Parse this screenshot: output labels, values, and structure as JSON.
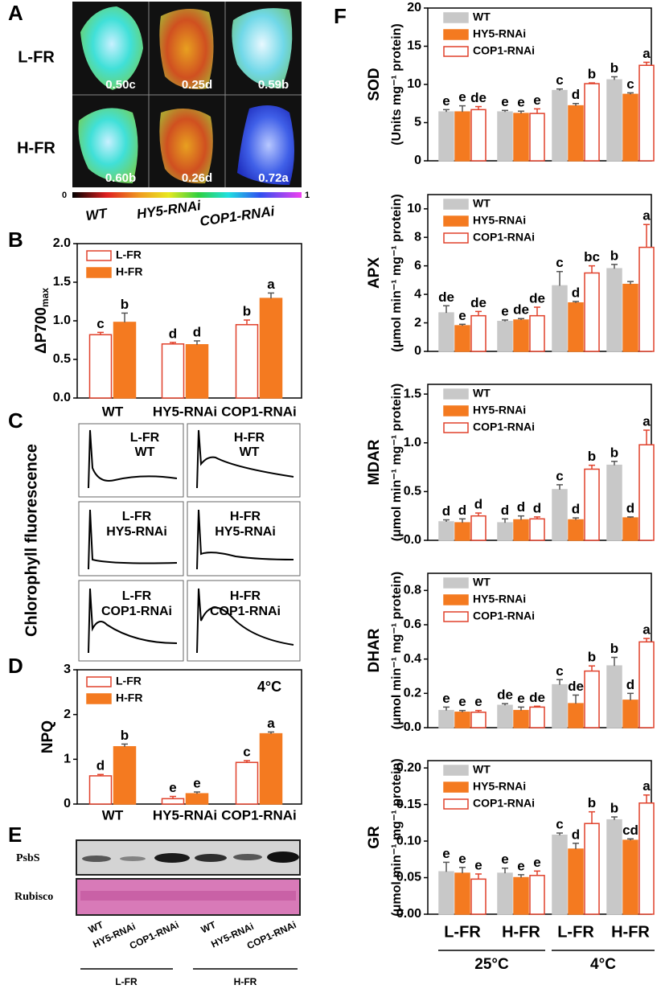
{
  "panel_letters": [
    "A",
    "B",
    "C",
    "D",
    "E",
    "F"
  ],
  "panel_a": {
    "rows": [
      "L-FR",
      "H-FR"
    ],
    "columns": [
      "WT",
      "HY5-RNAi",
      "COP1-RNAi"
    ],
    "labels": [
      [
        "0.50c",
        "0.25d",
        "0.59b"
      ],
      [
        "0.60b",
        "0.26d",
        "0.72a"
      ]
    ],
    "colorbar": [
      0,
      1
    ]
  },
  "panel_c": {
    "ylabel": "Chlorophyll fluorescence",
    "cells": [
      [
        "L-FR",
        "WT"
      ],
      [
        "H-FR",
        "WT"
      ],
      [
        "L-FR",
        "HY5-RNAi"
      ],
      [
        "H-FR",
        "HY5-RNAi"
      ],
      [
        "L-FR",
        "COP1-RNAi"
      ],
      [
        "H-FR",
        "COP1-RNAi"
      ]
    ]
  },
  "panel_e": {
    "rows": [
      "PsbS",
      "Rubisco"
    ],
    "lanes": [
      "WT",
      "HY5-RNAi",
      "COP1-RNAi",
      "WT",
      "HY5-RNAi",
      "COP1-RNAi"
    ],
    "groups": [
      "L-FR",
      "H-FR"
    ]
  },
  "chart_data": [
    {
      "type": "bar",
      "ylabel": "ΔP700",
      "ylabel_sub": "max",
      "legend": "upper left",
      "categories": [
        "WT",
        "HY5-RNAi",
        "COP1-RNAi"
      ],
      "ylim": [
        0,
        2.0
      ],
      "yticks": [
        {
          "value": 0,
          "label": "0.0"
        },
        {
          "value": 0.5,
          "label": "0.5"
        },
        {
          "value": 1,
          "label": "1.0"
        },
        {
          "value": 1.5,
          "label": "1.5"
        },
        {
          "value": 2,
          "label": "2.0"
        }
      ],
      "series": [
        {
          "name": "L-FR",
          "color": "#ffffff",
          "edgecolor": "#e0402a",
          "values": [
            0.82,
            0.7,
            0.95
          ],
          "errors": [
            0.03,
            0.02,
            0.06
          ],
          "letters": [
            "c",
            "d",
            "b"
          ]
        },
        {
          "name": "H-FR",
          "color": "#f47a20",
          "values": [
            0.98,
            0.69,
            1.29
          ],
          "errors": [
            0.12,
            0.05,
            0.07
          ],
          "letters": [
            "b",
            "d",
            "a"
          ]
        }
      ]
    },
    {
      "type": "bar",
      "ylabel": "NPQ",
      "legend": "upper left",
      "annotation": "4°C",
      "categories": [
        "WT",
        "HY5-RNAi",
        "COP1-RNAi"
      ],
      "ylim": [
        0,
        3
      ],
      "yticks": [
        0,
        1,
        2,
        3
      ],
      "series": [
        {
          "name": "L-FR",
          "color": "#ffffff",
          "edgecolor": "#e0402a",
          "values": [
            0.63,
            0.12,
            0.93
          ],
          "errors": [
            0.03,
            0.05,
            0.04
          ],
          "letters": [
            "d",
            "e",
            "c"
          ]
        },
        {
          "name": "H-FR",
          "color": "#f47a20",
          "values": [
            1.28,
            0.23,
            1.57
          ],
          "errors": [
            0.06,
            0.04,
            0.04
          ],
          "letters": [
            "b",
            "e",
            "a"
          ]
        }
      ]
    },
    {
      "type": "bar",
      "ylabel": "SOD",
      "ylabel_units": "(Units mg⁻¹ protein)",
      "legend": "upper left",
      "ylim": [
        0,
        20
      ],
      "yticks": [
        0,
        5,
        10,
        15,
        20
      ],
      "series": [
        {
          "name": "WT",
          "color": "#c8c8c8",
          "values": [
            6.4,
            6.4,
            9.2,
            10.6
          ],
          "errors": [
            0.3,
            0.2,
            0.2,
            0.4
          ],
          "letters": [
            "e",
            "e",
            "c",
            "b"
          ]
        },
        {
          "name": "HY5-RNAi",
          "color": "#f47a20",
          "values": [
            6.4,
            6.2,
            7.2,
            8.7
          ],
          "errors": [
            0.8,
            0.3,
            0.3,
            0.2
          ],
          "letters": [
            "e",
            "e",
            "d",
            "c"
          ]
        },
        {
          "name": "COP1-RNAi",
          "color": "#ffffff",
          "edgecolor": "#e0402a",
          "values": [
            6.7,
            6.2,
            10.1,
            12.5
          ],
          "errors": [
            0.4,
            0.6,
            0.1,
            0.4
          ],
          "letters": [
            "de",
            "e",
            "b",
            "a"
          ]
        }
      ]
    },
    {
      "type": "bar",
      "ylabel": "APX",
      "ylabel_units": "(μmol min⁻¹ mg⁻¹ protein)",
      "legend": "upper left",
      "ylim": [
        0,
        11
      ],
      "yticks": [
        0,
        2,
        4,
        6,
        8,
        10
      ],
      "series": [
        {
          "name": "WT",
          "color": "#c8c8c8",
          "values": [
            2.7,
            2.1,
            4.6,
            5.8
          ],
          "errors": [
            0.5,
            0.1,
            1.0,
            0.3
          ],
          "letters": [
            "de",
            "e",
            "c",
            "b"
          ]
        },
        {
          "name": "HY5-RNAi",
          "color": "#f47a20",
          "values": [
            1.8,
            2.2,
            3.4,
            4.7
          ],
          "errors": [
            0.1,
            0.1,
            0.1,
            0.2
          ],
          "letters": [
            "e",
            "de",
            "d",
            null
          ]
        },
        {
          "name": "COP1-RNAi",
          "color": "#ffffff",
          "edgecolor": "#e0402a",
          "values": [
            2.5,
            2.5,
            5.5,
            7.3
          ],
          "errors": [
            0.3,
            0.6,
            0.5,
            1.6
          ],
          "letters": [
            "de",
            "de",
            "bc",
            "a"
          ]
        }
      ]
    },
    {
      "type": "bar",
      "ylabel": "MDAR",
      "ylabel_units": "(μmol min⁻¹ mg⁻¹ protein)",
      "legend": "upper left",
      "ylim": [
        0,
        1.6
      ],
      "yticks": [
        {
          "value": 0,
          "label": "0.0"
        },
        {
          "value": 0.5,
          "label": "0.5"
        },
        {
          "value": 1,
          "label": "1.0"
        },
        {
          "value": 1.5,
          "label": "1.5"
        }
      ],
      "series": [
        {
          "name": "WT",
          "color": "#c8c8c8",
          "values": [
            0.19,
            0.18,
            0.52,
            0.77
          ],
          "errors": [
            0.02,
            0.04,
            0.05,
            0.04
          ],
          "letters": [
            "d",
            "d",
            "c",
            "b"
          ]
        },
        {
          "name": "HY5-RNAi",
          "color": "#f47a20",
          "values": [
            0.18,
            0.21,
            0.21,
            0.23
          ],
          "errors": [
            0.04,
            0.04,
            0.02,
            0.01
          ],
          "letters": [
            "d",
            "d",
            "d",
            "d"
          ]
        },
        {
          "name": "COP1-RNAi",
          "color": "#ffffff",
          "edgecolor": "#e0402a",
          "values": [
            0.25,
            0.22,
            0.73,
            0.98
          ],
          "errors": [
            0.03,
            0.02,
            0.04,
            0.15
          ],
          "letters": [
            "d",
            "d",
            "b",
            "a"
          ]
        }
      ]
    },
    {
      "type": "bar",
      "ylabel": "DHAR",
      "ylabel_units": "(μmol min⁻¹ mg⁻¹ protein)",
      "legend": "upper left",
      "ylim": [
        0,
        0.9
      ],
      "yticks": [
        {
          "value": 0,
          "label": "0.0"
        },
        0.2,
        0.4,
        0.6,
        0.8
      ],
      "series": [
        {
          "name": "WT",
          "color": "#c8c8c8",
          "values": [
            0.1,
            0.13,
            0.25,
            0.36
          ],
          "errors": [
            0.02,
            0.01,
            0.03,
            0.05
          ],
          "letters": [
            "e",
            "de",
            "c",
            "b"
          ]
        },
        {
          "name": "HY5-RNAi",
          "color": "#f47a20",
          "values": [
            0.09,
            0.1,
            0.14,
            0.16
          ],
          "errors": [
            0.01,
            0.02,
            0.05,
            0.04
          ],
          "letters": [
            "e",
            "e",
            "de",
            "d"
          ]
        },
        {
          "name": "COP1-RNAi",
          "color": "#ffffff",
          "edgecolor": "#e0402a",
          "values": [
            0.09,
            0.12,
            0.33,
            0.5
          ],
          "errors": [
            0.01,
            0.005,
            0.03,
            0.02
          ],
          "letters": [
            "e",
            "de",
            "b",
            "a"
          ]
        }
      ]
    },
    {
      "type": "bar",
      "ylabel": "GR",
      "ylabel_units": "(μmol min⁻¹ mg⁻¹ protein)",
      "legend": "upper left",
      "categories": [
        "L-FR",
        "H-FR",
        "L-FR",
        "H-FR"
      ],
      "category_groups": [
        "25°C",
        "4°C"
      ],
      "ylim": [
        0,
        0.21
      ],
      "yticks": [
        {
          "value": 0,
          "label": "0.00"
        },
        {
          "value": 0.05,
          "label": "0.05"
        },
        {
          "value": 0.1,
          "label": "0.10"
        },
        {
          "value": 0.15,
          "label": "0.15"
        },
        {
          "value": 0.2,
          "label": "0.20"
        }
      ],
      "series": [
        {
          "name": "WT",
          "color": "#c8c8c8",
          "values": [
            0.058,
            0.056,
            0.108,
            0.129
          ],
          "errors": [
            0.013,
            0.007,
            0.003,
            0.004
          ],
          "letters": [
            "e",
            "e",
            "c",
            "b"
          ]
        },
        {
          "name": "HY5-RNAi",
          "color": "#f47a20",
          "values": [
            0.056,
            0.05,
            0.089,
            0.101
          ],
          "errors": [
            0.008,
            0.004,
            0.008,
            0.002
          ],
          "letters": [
            "e",
            "e",
            "d",
            "cd"
          ]
        },
        {
          "name": "COP1-RNAi",
          "color": "#ffffff",
          "edgecolor": "#e0402a",
          "values": [
            0.048,
            0.053,
            0.124,
            0.152
          ],
          "errors": [
            0.007,
            0.006,
            0.016,
            0.011
          ],
          "letters": [
            "e",
            "e",
            "b",
            "a"
          ]
        }
      ]
    }
  ]
}
